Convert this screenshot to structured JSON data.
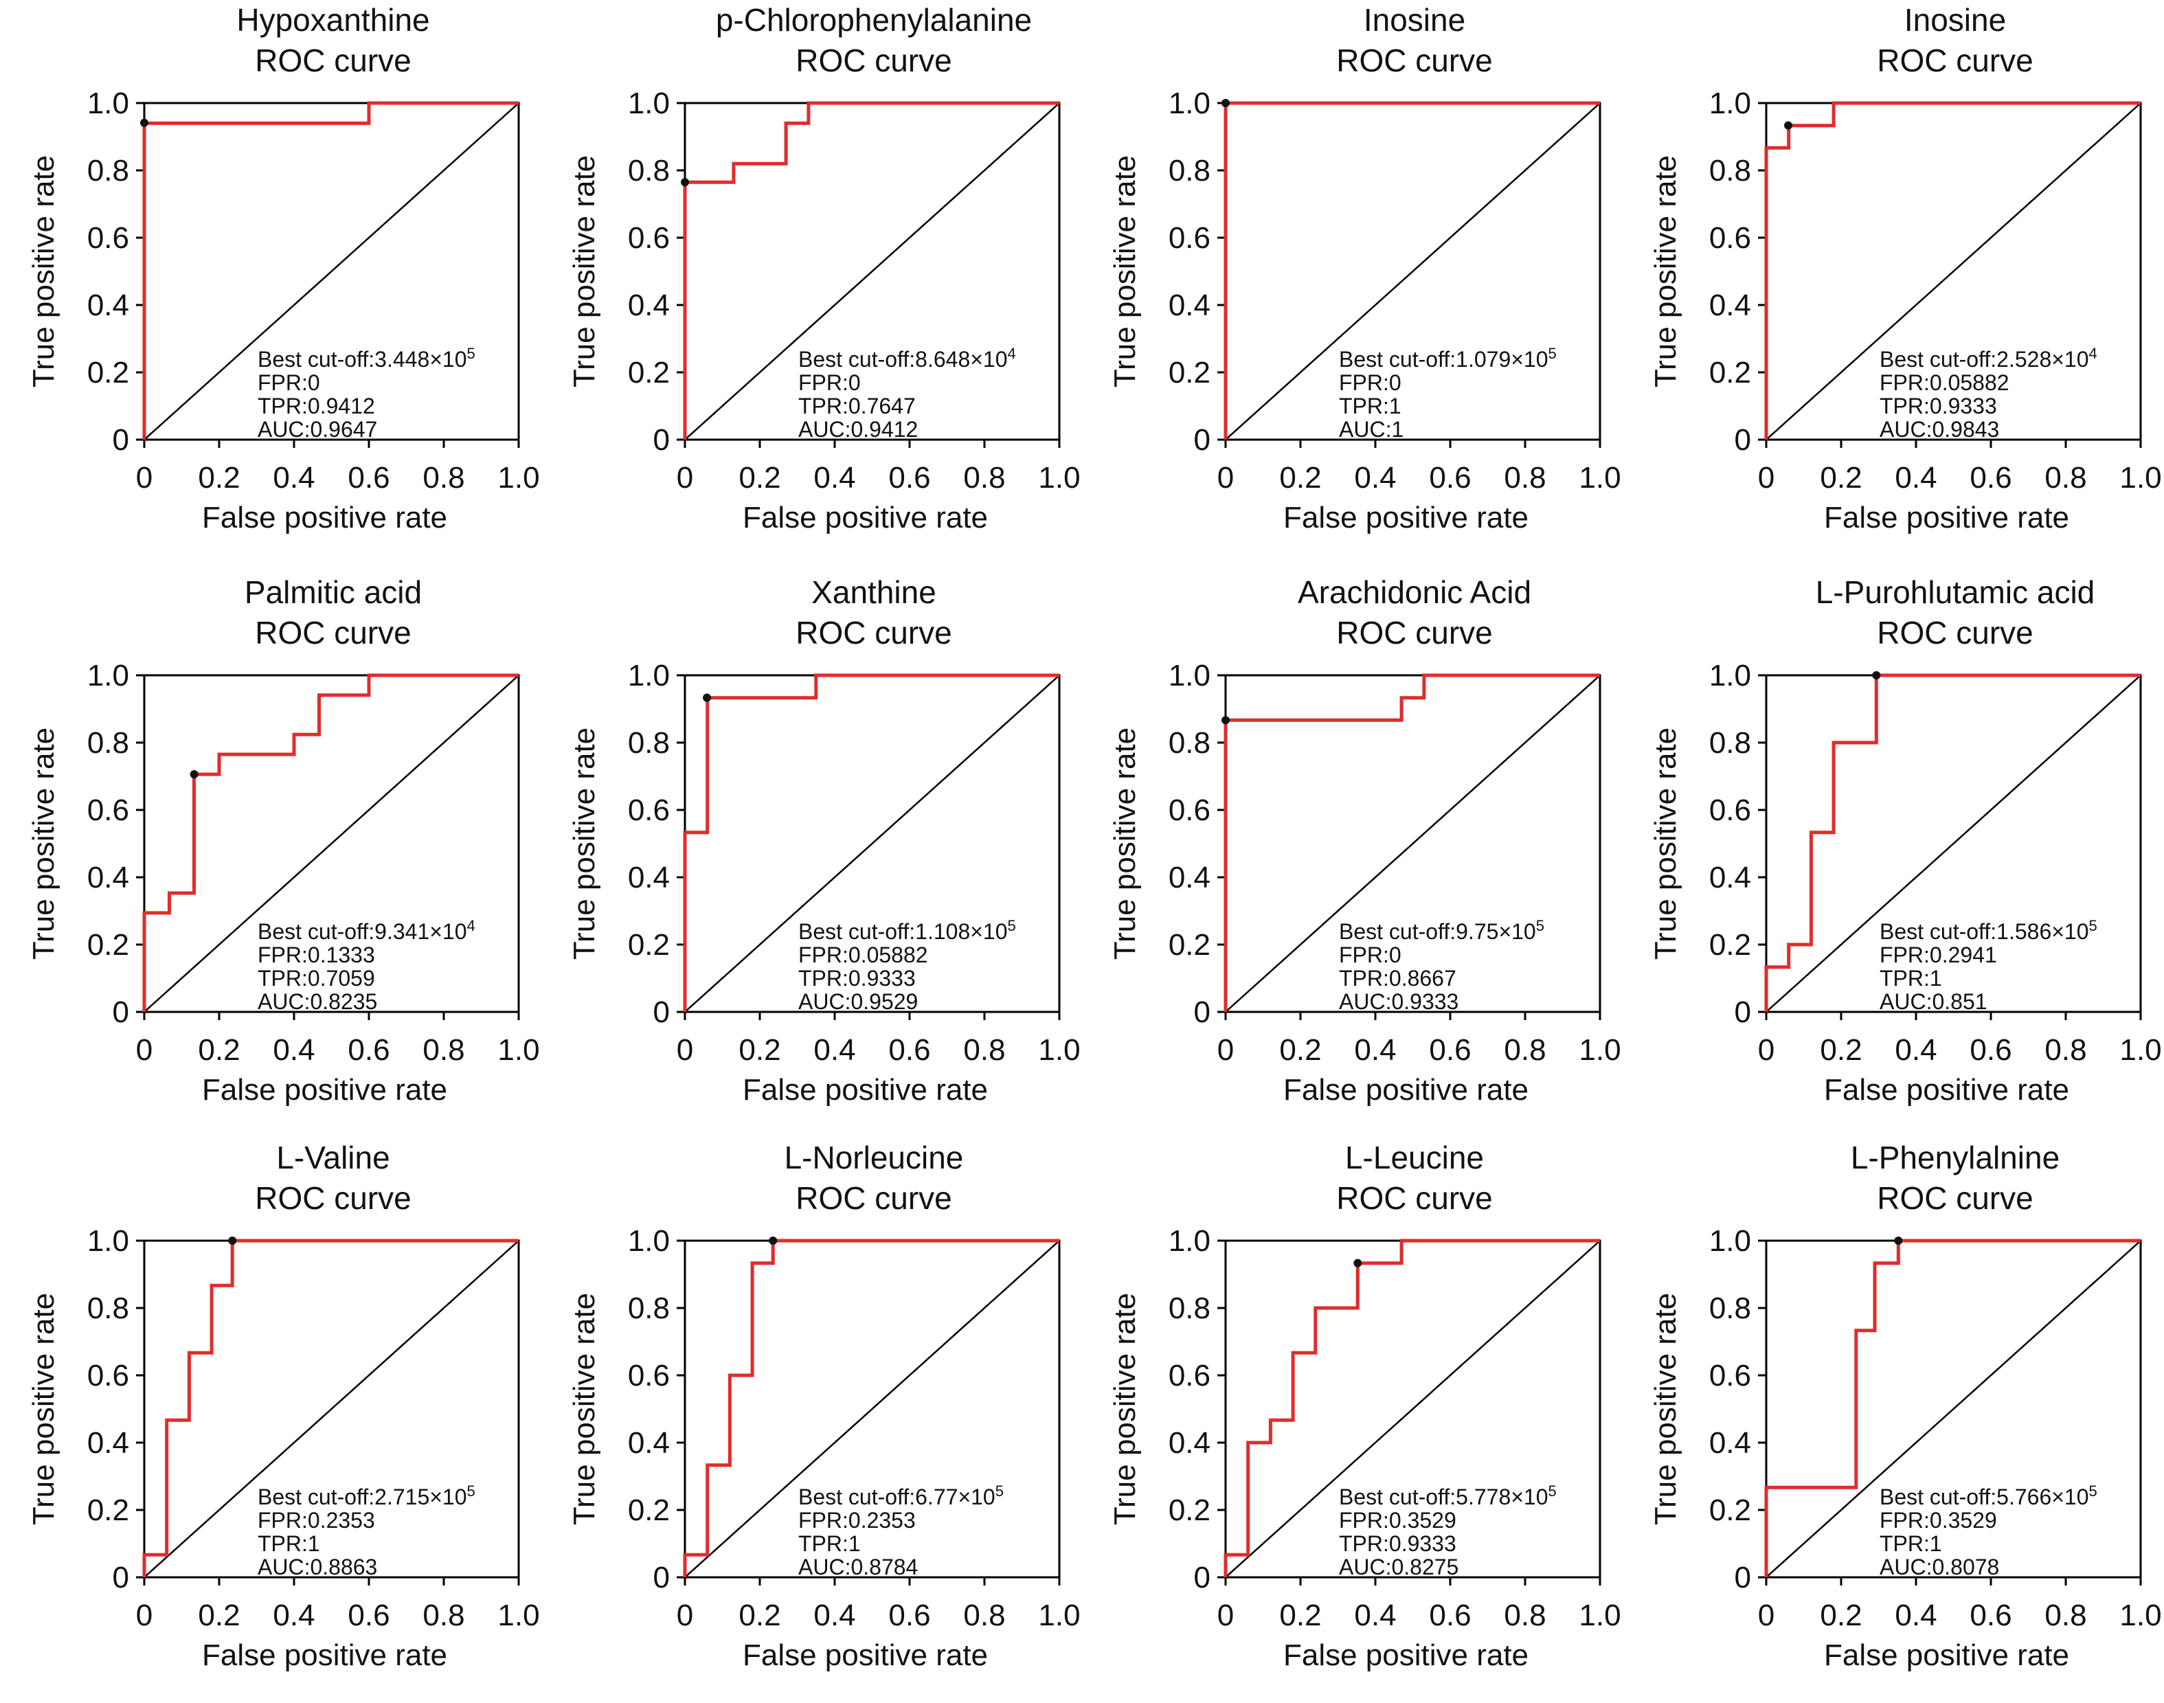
{
  "colors": {
    "roc_line": "#e02c2c",
    "diagonal": "#000000",
    "best_point": "#111111"
  },
  "chart_data": [
    {
      "type": "line",
      "title": "Hypoxanthine",
      "subtitle": "ROC curve",
      "xlabel": "False positive rate",
      "ylabel": "True positive rate",
      "xlim": [
        0,
        1
      ],
      "ylim": [
        0,
        1
      ],
      "x_ticks": [
        "0",
        "0.2",
        "0.4",
        "0.6",
        "0.8",
        "1.0"
      ],
      "y_ticks": [
        "0",
        "0.2",
        "0.4",
        "0.6",
        "0.8",
        "1.0"
      ],
      "grid": false,
      "series": [
        {
          "x": [
            0,
            0,
            0.6,
            0.6,
            1.0
          ],
          "y": [
            0,
            0.94,
            0.94,
            1.0,
            1.0
          ]
        }
      ],
      "best_point": {
        "x": 0,
        "y": 0.9412
      },
      "annotation": {
        "cutoff_label": "Best cut-off:",
        "cutoff_mantissa": "3.448×10",
        "cutoff_exp": "5",
        "fpr": "FPR:0",
        "tpr": "TPR:0.9412",
        "auc": "AUC:0.9647"
      }
    },
    {
      "type": "line",
      "title": "p-Chlorophenylalanine",
      "subtitle": "ROC curve",
      "xlabel": "False positive rate",
      "ylabel": "True positive rate",
      "xlim": [
        0,
        1
      ],
      "ylim": [
        0,
        1
      ],
      "x_ticks": [
        "0",
        "0.2",
        "0.4",
        "0.6",
        "0.8",
        "1.0"
      ],
      "y_ticks": [
        "0",
        "0.2",
        "0.4",
        "0.6",
        "0.8",
        "1.0"
      ],
      "grid": false,
      "series": [
        {
          "x": [
            0,
            0,
            0.13,
            0.13,
            0.27,
            0.27,
            0.33,
            0.33,
            1.0
          ],
          "y": [
            0,
            0.7647,
            0.7647,
            0.82,
            0.82,
            0.94,
            0.94,
            1.0,
            1.0
          ]
        }
      ],
      "best_point": {
        "x": 0,
        "y": 0.7647
      },
      "annotation": {
        "cutoff_label": "Best cut-off:",
        "cutoff_mantissa": "8.648×10",
        "cutoff_exp": "4",
        "fpr": "FPR:0",
        "tpr": "TPR:0.7647",
        "auc": "AUC:0.9412"
      }
    },
    {
      "type": "line",
      "title": "Inosine",
      "subtitle": "ROC curve",
      "xlabel": "False positive rate",
      "ylabel": "True positive rate",
      "xlim": [
        0,
        1
      ],
      "ylim": [
        0,
        1
      ],
      "x_ticks": [
        "0",
        "0.2",
        "0.4",
        "0.6",
        "0.8",
        "1.0"
      ],
      "y_ticks": [
        "0",
        "0.2",
        "0.4",
        "0.6",
        "0.8",
        "1.0"
      ],
      "grid": false,
      "series": [
        {
          "x": [
            0,
            0,
            1.0
          ],
          "y": [
            0,
            1.0,
            1.0
          ]
        }
      ],
      "best_point": {
        "x": 0,
        "y": 1.0
      },
      "annotation": {
        "cutoff_label": "Best cut-off:",
        "cutoff_mantissa": "1.079×10",
        "cutoff_exp": "5",
        "fpr": "FPR:0",
        "tpr": "TPR:1",
        "auc": "AUC:1"
      }
    },
    {
      "type": "line",
      "title": "Inosine",
      "subtitle": "ROC curve",
      "xlabel": "False positive rate",
      "ylabel": "True positive rate",
      "xlim": [
        0,
        1
      ],
      "ylim": [
        0,
        1
      ],
      "x_ticks": [
        "0",
        "0.2",
        "0.4",
        "0.6",
        "0.8",
        "1.0"
      ],
      "y_ticks": [
        "0",
        "0.2",
        "0.4",
        "0.6",
        "0.8",
        "1.0"
      ],
      "grid": false,
      "series": [
        {
          "x": [
            0,
            0,
            0.06,
            0.06,
            0.18,
            0.18,
            1.0
          ],
          "y": [
            0,
            0.867,
            0.867,
            0.9333,
            0.9333,
            1.0,
            1.0
          ]
        }
      ],
      "best_point": {
        "x": 0.05882,
        "y": 0.9333
      },
      "annotation": {
        "cutoff_label": "Best cut-off:",
        "cutoff_mantissa": "2.528×10",
        "cutoff_exp": "4",
        "fpr": "FPR:0.05882",
        "tpr": "TPR:0.9333",
        "auc": "AUC:0.9843"
      }
    },
    {
      "type": "line",
      "title": "Palmitic acid",
      "subtitle": "ROC curve",
      "xlabel": "False positive rate",
      "ylabel": "True positive rate",
      "xlim": [
        0,
        1
      ],
      "ylim": [
        0,
        1
      ],
      "x_ticks": [
        "0",
        "0.2",
        "0.4",
        "0.6",
        "0.8",
        "1.0"
      ],
      "y_ticks": [
        "0",
        "0.2",
        "0.4",
        "0.6",
        "0.8",
        "1.0"
      ],
      "grid": false,
      "series": [
        {
          "x": [
            0,
            0,
            0.067,
            0.067,
            0.133,
            0.133,
            0.2,
            0.2,
            0.4,
            0.4,
            0.467,
            0.467,
            0.6,
            0.6,
            1.0
          ],
          "y": [
            0,
            0.294,
            0.294,
            0.353,
            0.353,
            0.7059,
            0.7059,
            0.765,
            0.765,
            0.824,
            0.824,
            0.941,
            0.941,
            1.0,
            1.0
          ]
        }
      ],
      "best_point": {
        "x": 0.1333,
        "y": 0.7059
      },
      "annotation": {
        "cutoff_label": "Best cut-off:",
        "cutoff_mantissa": "9.341×10",
        "cutoff_exp": "4",
        "fpr": "FPR:0.1333",
        "tpr": "TPR:0.7059",
        "auc": "AUC:0.8235"
      }
    },
    {
      "type": "line",
      "title": "Xanthine",
      "subtitle": "ROC curve",
      "xlabel": "False positive rate",
      "ylabel": "True positive rate",
      "xlim": [
        0,
        1
      ],
      "ylim": [
        0,
        1
      ],
      "x_ticks": [
        "0",
        "0.2",
        "0.4",
        "0.6",
        "0.8",
        "1.0"
      ],
      "y_ticks": [
        "0",
        "0.2",
        "0.4",
        "0.6",
        "0.8",
        "1.0"
      ],
      "grid": false,
      "series": [
        {
          "x": [
            0,
            0,
            0.06,
            0.06,
            0.35,
            0.35,
            1.0
          ],
          "y": [
            0,
            0.533,
            0.533,
            0.9333,
            0.9333,
            1.0,
            1.0
          ]
        }
      ],
      "best_point": {
        "x": 0.05882,
        "y": 0.9333
      },
      "annotation": {
        "cutoff_label": "Best cut-off:",
        "cutoff_mantissa": "1.108×10",
        "cutoff_exp": "5",
        "fpr": "FPR:0.05882",
        "tpr": "TPR:0.9333",
        "auc": "AUC:0.9529"
      }
    },
    {
      "type": "line",
      "title": "Arachidonic Acid",
      "subtitle": "ROC curve",
      "xlabel": "False positive rate",
      "ylabel": "True positive rate",
      "xlim": [
        0,
        1
      ],
      "ylim": [
        0,
        1
      ],
      "x_ticks": [
        "0",
        "0.2",
        "0.4",
        "0.6",
        "0.8",
        "1.0"
      ],
      "y_ticks": [
        "0",
        "0.2",
        "0.4",
        "0.6",
        "0.8",
        "1.0"
      ],
      "grid": false,
      "series": [
        {
          "x": [
            0,
            0,
            0.47,
            0.47,
            0.53,
            0.53,
            1.0
          ],
          "y": [
            0,
            0.8667,
            0.8667,
            0.933,
            0.933,
            1.0,
            1.0
          ]
        }
      ],
      "best_point": {
        "x": 0,
        "y": 0.8667
      },
      "annotation": {
        "cutoff_label": "Best cut-off:",
        "cutoff_mantissa": "9.75×10",
        "cutoff_exp": "5",
        "fpr": "FPR:0",
        "tpr": "TPR:0.8667",
        "auc": "AUC:0.9333"
      }
    },
    {
      "type": "line",
      "title": "L-Purohlutamic acid",
      "subtitle": "ROC curve",
      "xlabel": "False positive rate",
      "ylabel": "True positive rate",
      "xlim": [
        0,
        1
      ],
      "ylim": [
        0,
        1
      ],
      "x_ticks": [
        "0",
        "0.2",
        "0.4",
        "0.6",
        "0.8",
        "1.0"
      ],
      "y_ticks": [
        "0",
        "0.2",
        "0.4",
        "0.6",
        "0.8",
        "1.0"
      ],
      "grid": false,
      "series": [
        {
          "x": [
            0,
            0,
            0.06,
            0.06,
            0.12,
            0.12,
            0.18,
            0.18,
            0.2941,
            0.2941,
            1.0
          ],
          "y": [
            0,
            0.133,
            0.133,
            0.2,
            0.2,
            0.533,
            0.533,
            0.8,
            0.8,
            1.0,
            1.0
          ]
        }
      ],
      "best_point": {
        "x": 0.2941,
        "y": 1.0
      },
      "annotation": {
        "cutoff_label": "Best cut-off:",
        "cutoff_mantissa": "1.586×10",
        "cutoff_exp": "5",
        "fpr": "FPR:0.2941",
        "tpr": "TPR:1",
        "auc": "AUC:0.851"
      }
    },
    {
      "type": "line",
      "title": "L-Valine",
      "subtitle": "ROC curve",
      "xlabel": "False positive rate",
      "ylabel": "True positive rate",
      "xlim": [
        0,
        1
      ],
      "ylim": [
        0,
        1
      ],
      "x_ticks": [
        "0",
        "0.2",
        "0.4",
        "0.6",
        "0.8",
        "1.0"
      ],
      "y_ticks": [
        "0",
        "0.2",
        "0.4",
        "0.6",
        "0.8",
        "1.0"
      ],
      "grid": false,
      "series": [
        {
          "x": [
            0,
            0,
            0.06,
            0.06,
            0.12,
            0.12,
            0.18,
            0.18,
            0.2353,
            0.2353,
            1.0
          ],
          "y": [
            0,
            0.067,
            0.067,
            0.467,
            0.467,
            0.667,
            0.667,
            0.867,
            0.867,
            1.0,
            1.0
          ]
        }
      ],
      "best_point": {
        "x": 0.2353,
        "y": 1.0
      },
      "annotation": {
        "cutoff_label": "Best cut-off:",
        "cutoff_mantissa": "2.715×10",
        "cutoff_exp": "5",
        "fpr": "FPR:0.2353",
        "tpr": "TPR:1",
        "auc": "AUC:0.8863"
      }
    },
    {
      "type": "line",
      "title": "L-Norleucine",
      "subtitle": "ROC curve",
      "xlabel": "False positive rate",
      "ylabel": "True positive rate",
      "xlim": [
        0,
        1
      ],
      "ylim": [
        0,
        1
      ],
      "x_ticks": [
        "0",
        "0.2",
        "0.4",
        "0.6",
        "0.8",
        "1.0"
      ],
      "y_ticks": [
        "0",
        "0.2",
        "0.4",
        "0.6",
        "0.8",
        "1.0"
      ],
      "grid": false,
      "series": [
        {
          "x": [
            0,
            0,
            0.06,
            0.06,
            0.12,
            0.12,
            0.18,
            0.18,
            0.2353,
            0.2353,
            1.0
          ],
          "y": [
            0,
            0.067,
            0.067,
            0.333,
            0.333,
            0.6,
            0.6,
            0.933,
            0.933,
            1.0,
            1.0
          ]
        }
      ],
      "best_point": {
        "x": 0.2353,
        "y": 1.0
      },
      "annotation": {
        "cutoff_label": "Best cut-off:",
        "cutoff_mantissa": "6.77×10",
        "cutoff_exp": "5",
        "fpr": "FPR:0.2353",
        "tpr": "TPR:1",
        "auc": "AUC:0.8784"
      }
    },
    {
      "type": "line",
      "title": "L-Leucine",
      "subtitle": "ROC curve",
      "xlabel": "False positive rate",
      "ylabel": "True positive rate",
      "xlim": [
        0,
        1
      ],
      "ylim": [
        0,
        1
      ],
      "x_ticks": [
        "0",
        "0.2",
        "0.4",
        "0.6",
        "0.8",
        "1.0"
      ],
      "y_ticks": [
        "0",
        "0.2",
        "0.4",
        "0.6",
        "0.8",
        "1.0"
      ],
      "grid": false,
      "series": [
        {
          "x": [
            0,
            0,
            0.06,
            0.06,
            0.12,
            0.12,
            0.18,
            0.18,
            0.24,
            0.24,
            0.3529,
            0.3529,
            0.47,
            0.47,
            1.0
          ],
          "y": [
            0,
            0.067,
            0.067,
            0.4,
            0.4,
            0.467,
            0.467,
            0.667,
            0.667,
            0.8,
            0.8,
            0.9333,
            0.9333,
            1.0,
            1.0
          ]
        }
      ],
      "best_point": {
        "x": 0.3529,
        "y": 0.9333
      },
      "annotation": {
        "cutoff_label": "Best cut-off:",
        "cutoff_mantissa": "5.778×10",
        "cutoff_exp": "5",
        "fpr": "FPR:0.3529",
        "tpr": "TPR:0.9333",
        "auc": "AUC:0.8275"
      }
    },
    {
      "type": "line",
      "title": "L-Phenylalnine",
      "subtitle": "ROC curve",
      "xlabel": "False positive rate",
      "ylabel": "True positive rate",
      "xlim": [
        0,
        1
      ],
      "ylim": [
        0,
        1
      ],
      "x_ticks": [
        "0",
        "0.2",
        "0.4",
        "0.6",
        "0.8",
        "1.0"
      ],
      "y_ticks": [
        "0",
        "0.2",
        "0.4",
        "0.6",
        "0.8",
        "1.0"
      ],
      "grid": false,
      "series": [
        {
          "x": [
            0,
            0,
            0.24,
            0.24,
            0.29,
            0.29,
            0.3529,
            0.3529,
            1.0
          ],
          "y": [
            0,
            0.267,
            0.267,
            0.733,
            0.733,
            0.933,
            0.933,
            1.0,
            1.0
          ]
        }
      ],
      "best_point": {
        "x": 0.3529,
        "y": 1.0
      },
      "annotation": {
        "cutoff_label": "Best cut-off:",
        "cutoff_mantissa": "5.766×10",
        "cutoff_exp": "5",
        "fpr": "FPR:0.3529",
        "tpr": "TPR:1",
        "auc": "AUC:0.8078"
      }
    }
  ]
}
